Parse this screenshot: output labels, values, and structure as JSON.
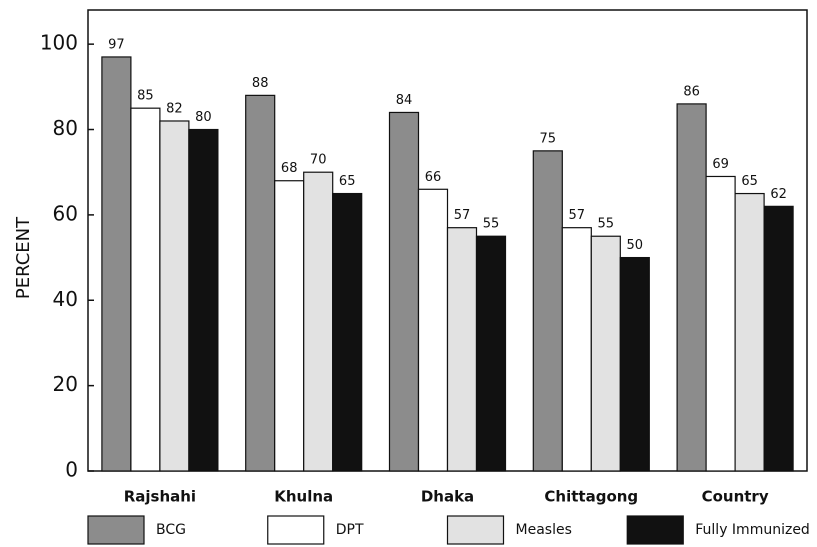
{
  "chart_data": {
    "type": "bar",
    "ylabel": "PERCENT",
    "categories": [
      "Rajshahi",
      "Khulna",
      "Dhaka",
      "Chittagong",
      "Country"
    ],
    "series": [
      {
        "name": "BCG",
        "color": "#8c8c8c",
        "values": [
          97,
          88,
          84,
          75,
          86
        ]
      },
      {
        "name": "DPT",
        "color": "#ffffff",
        "values": [
          85,
          68,
          66,
          57,
          69
        ]
      },
      {
        "name": "Measles",
        "color": "#e2e2e2",
        "values": [
          82,
          70,
          57,
          55,
          65
        ]
      },
      {
        "name": "Fully Immunized",
        "color": "#111111",
        "values": [
          80,
          65,
          55,
          50,
          62
        ]
      }
    ],
    "ylim": [
      0,
      108
    ],
    "yticks": [
      0,
      20,
      40,
      60,
      80,
      100
    ],
    "legend": "bottom"
  }
}
